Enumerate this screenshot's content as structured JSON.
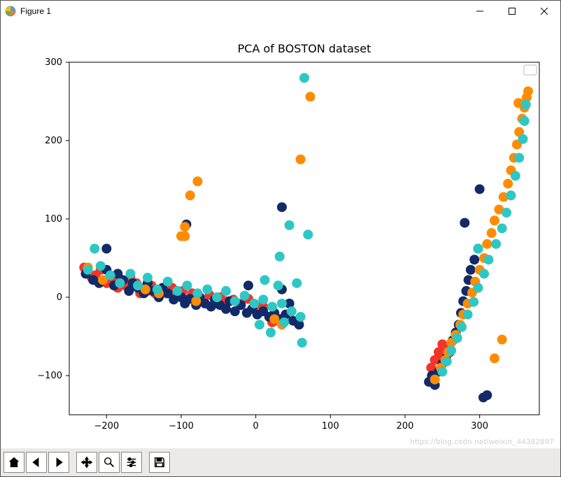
{
  "window": {
    "title": "Figure 1",
    "minimize_tooltip": "Minimize",
    "maximize_tooltip": "Maximize",
    "close_tooltip": "Close"
  },
  "chart": {
    "type": "scatter",
    "title": "PCA of BOSTON dataset",
    "title_fontsize": 16,
    "tick_fontsize": 13,
    "background_color": "#ffffff",
    "axis_color": "#000000",
    "xlim": [
      -250,
      380
    ],
    "ylim": [
      -150,
      300
    ],
    "xticks": [
      -200,
      -100,
      0,
      100,
      200,
      300
    ],
    "yticks": [
      -100,
      0,
      100,
      200,
      300
    ],
    "marker_radius": 7,
    "marker_alpha": 1.0,
    "colors": {
      "red": "#f33429",
      "navy": "#132a68",
      "orange": "#ff8c00",
      "teal": "#2ec7c4"
    },
    "legend_box": true,
    "series": [
      {
        "color": "red",
        "points": [
          [
            -230,
            38
          ],
          [
            -225,
            32
          ],
          [
            -220,
            25
          ],
          [
            -215,
            28
          ],
          [
            -210,
            20
          ],
          [
            -208,
            35
          ],
          [
            -200,
            18
          ],
          [
            -195,
            25
          ],
          [
            -190,
            22
          ],
          [
            -185,
            12
          ],
          [
            -180,
            20
          ],
          [
            -175,
            15
          ],
          [
            -170,
            10
          ],
          [
            -168,
            25
          ],
          [
            -160,
            18
          ],
          [
            -155,
            5
          ],
          [
            -150,
            12
          ],
          [
            -145,
            8
          ],
          [
            -140,
            15
          ],
          [
            -135,
            5
          ],
          [
            -128,
            10
          ],
          [
            -120,
            5
          ],
          [
            -112,
            12
          ],
          [
            -105,
            3
          ],
          [
            -98,
            8
          ],
          [
            -90,
            -2
          ],
          [
            -85,
            5
          ],
          [
            -78,
            0
          ],
          [
            -70,
            -5
          ],
          [
            -62,
            3
          ],
          [
            -55,
            -8
          ],
          [
            -48,
            0
          ],
          [
            -40,
            -5
          ],
          [
            -30,
            -3
          ],
          [
            -20,
            -8
          ],
          [
            -10,
            -2
          ],
          [
            0,
            -10
          ],
          [
            10,
            -12
          ],
          [
            22,
            -32
          ],
          [
            30,
            -30
          ],
          [
            235,
            -90
          ],
          [
            240,
            -80
          ],
          [
            245,
            -70
          ],
          [
            248,
            -75
          ],
          [
            250,
            -60
          ],
          [
            252,
            -65
          ]
        ]
      },
      {
        "color": "navy",
        "points": [
          [
            -228,
            30
          ],
          [
            -218,
            22
          ],
          [
            -210,
            18
          ],
          [
            -200,
            35
          ],
          [
            -200,
            62
          ],
          [
            -190,
            15
          ],
          [
            -185,
            30
          ],
          [
            -178,
            22
          ],
          [
            -170,
            8
          ],
          [
            -165,
            18
          ],
          [
            -158,
            12
          ],
          [
            -150,
            5
          ],
          [
            -145,
            18
          ],
          [
            -138,
            8
          ],
          [
            -130,
            0
          ],
          [
            -125,
            12
          ],
          [
            -118,
            5
          ],
          [
            -110,
            -3
          ],
          [
            -105,
            8
          ],
          [
            -100,
            0
          ],
          [
            -95,
            -8
          ],
          [
            -93,
            93
          ],
          [
            -88,
            -2
          ],
          [
            -80,
            -10
          ],
          [
            -75,
            0
          ],
          [
            -68,
            -8
          ],
          [
            -60,
            -12
          ],
          [
            -55,
            -3
          ],
          [
            -48,
            -10
          ],
          [
            -40,
            -15
          ],
          [
            -35,
            -5
          ],
          [
            -28,
            -18
          ],
          [
            -20,
            -10
          ],
          [
            -12,
            -20
          ],
          [
            -5,
            -15
          ],
          [
            2,
            -22
          ],
          [
            10,
            -18
          ],
          [
            18,
            -25
          ],
          [
            25,
            -20
          ],
          [
            32,
            -28
          ],
          [
            40,
            -22
          ],
          [
            45,
            -8
          ],
          [
            35,
            115
          ],
          [
            35,
            10
          ],
          [
            -10,
            15
          ],
          [
            50,
            -30
          ],
          [
            58,
            -35
          ],
          [
            232,
            -108
          ],
          [
            236,
            -100
          ],
          [
            240,
            -112
          ],
          [
            245,
            -95
          ],
          [
            250,
            -85
          ],
          [
            255,
            -78
          ],
          [
            260,
            -70
          ],
          [
            264,
            -55
          ],
          [
            268,
            -45
          ],
          [
            272,
            -35
          ],
          [
            275,
            -20
          ],
          [
            278,
            -5
          ],
          [
            282,
            8
          ],
          [
            285,
            22
          ],
          [
            288,
            35
          ],
          [
            293,
            48
          ],
          [
            298,
            62
          ],
          [
            280,
            95
          ],
          [
            300,
            138
          ],
          [
            305,
            -128
          ],
          [
            310,
            -125
          ]
        ]
      },
      {
        "color": "orange",
        "points": [
          [
            -225,
            38
          ],
          [
            -205,
            22
          ],
          [
            -148,
            10
          ],
          [
            -130,
            5
          ],
          [
            -80,
            -5
          ],
          [
            -78,
            148
          ],
          [
            -88,
            130
          ],
          [
            -95,
            78
          ],
          [
            -95,
            90
          ],
          [
            -100,
            78
          ],
          [
            25,
            -28
          ],
          [
            35,
            -35
          ],
          [
            60,
            176
          ],
          [
            73,
            256
          ],
          [
            240,
            -105
          ],
          [
            248,
            -90
          ],
          [
            254,
            -80
          ],
          [
            258,
            -70
          ],
          [
            262,
            -58
          ],
          [
            268,
            -48
          ],
          [
            274,
            -35
          ],
          [
            278,
            -22
          ],
          [
            284,
            -8
          ],
          [
            290,
            6
          ],
          [
            294,
            20
          ],
          [
            300,
            35
          ],
          [
            306,
            50
          ],
          [
            310,
            68
          ],
          [
            316,
            82
          ],
          [
            320,
            -78
          ],
          [
            330,
            -54
          ],
          [
            320,
            98
          ],
          [
            326,
            112
          ],
          [
            332,
            128
          ],
          [
            338,
            145
          ],
          [
            342,
            162
          ],
          [
            346,
            178
          ],
          [
            350,
            195
          ],
          [
            353,
            211
          ],
          [
            357,
            228
          ],
          [
            360,
            242
          ],
          [
            352,
            248
          ],
          [
            363,
            255
          ],
          [
            365,
            263
          ]
        ]
      },
      {
        "color": "teal",
        "points": [
          [
            -216,
            62
          ],
          [
            -225,
            35
          ],
          [
            -208,
            40
          ],
          [
            -195,
            28
          ],
          [
            -182,
            18
          ],
          [
            -168,
            30
          ],
          [
            -158,
            15
          ],
          [
            -145,
            25
          ],
          [
            -132,
            10
          ],
          [
            -118,
            20
          ],
          [
            -105,
            8
          ],
          [
            -92,
            15
          ],
          [
            -78,
            5
          ],
          [
            -65,
            10
          ],
          [
            -52,
            0
          ],
          [
            -40,
            8
          ],
          [
            -28,
            -5
          ],
          [
            -15,
            2
          ],
          [
            -2,
            -8
          ],
          [
            10,
            -3
          ],
          [
            22,
            -12
          ],
          [
            35,
            -8
          ],
          [
            48,
            -18
          ],
          [
            30,
            15
          ],
          [
            60,
            -25
          ],
          [
            62,
            -58
          ],
          [
            38,
            -32
          ],
          [
            20,
            -45
          ],
          [
            5,
            -35
          ],
          [
            55,
            18
          ],
          [
            70,
            80
          ],
          [
            45,
            92
          ],
          [
            32,
            52
          ],
          [
            12,
            22
          ],
          [
            65,
            280
          ],
          [
            250,
            -95
          ],
          [
            256,
            -82
          ],
          [
            262,
            -68
          ],
          [
            270,
            -52
          ],
          [
            276,
            -38
          ],
          [
            284,
            -22
          ],
          [
            292,
            -6
          ],
          [
            298,
            12
          ],
          [
            306,
            30
          ],
          [
            298,
            62
          ],
          [
            312,
            48
          ],
          [
            322,
            68
          ],
          [
            330,
            88
          ],
          [
            336,
            108
          ],
          [
            342,
            130
          ],
          [
            348,
            155
          ],
          [
            353,
            178
          ],
          [
            358,
            202
          ],
          [
            360,
            225
          ],
          [
            362,
            246
          ]
        ]
      }
    ]
  },
  "toolbar": {
    "home_tooltip": "Reset original view",
    "back_tooltip": "Back",
    "forward_tooltip": "Forward",
    "pan_tooltip": "Pan",
    "zoom_tooltip": "Zoom",
    "subplots_tooltip": "Configure subplots",
    "save_tooltip": "Save the figure"
  },
  "watermark": "https://blog.csdn.net/weixin_44382897"
}
